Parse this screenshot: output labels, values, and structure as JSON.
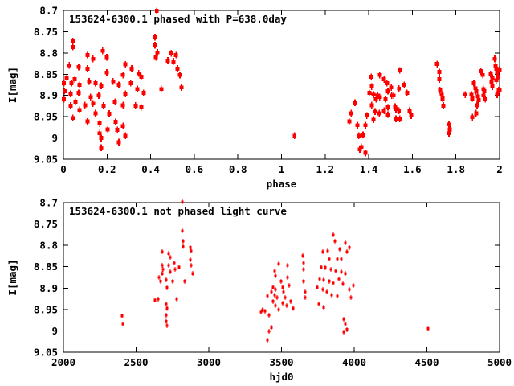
{
  "colors": {
    "marker": "#ff0000",
    "axis": "#000000",
    "background": "#ffffff"
  },
  "chart_data": [
    {
      "type": "scatter",
      "title": "153624-6300.1 phased with P=638.0day",
      "xlabel": "phase",
      "ylabel": "I[mag]",
      "xlim": [
        0,
        2
      ],
      "ylim": [
        8.7,
        9.05
      ],
      "y_axis_inverted": true,
      "grid": false,
      "legend": "none",
      "marker_style": "red filled square with vertical error bar",
      "xticks": {
        "values": [
          0,
          0.2,
          0.4,
          0.6,
          0.8,
          1,
          1.2,
          1.4,
          1.6,
          1.8,
          2
        ],
        "labels": [
          "0",
          "0.2",
          "0.4",
          "0.6",
          "0.8",
          "1",
          "1.2",
          "1.4",
          "1.6",
          "1.8",
          "2"
        ]
      },
      "yticks": {
        "values": [
          8.7,
          8.75,
          8.8,
          8.85,
          8.9,
          8.95,
          9,
          9.05
        ],
        "labels": [
          "8.7",
          "8.75",
          "8.8",
          "8.85",
          "8.9",
          "8.95",
          "9",
          "9.05"
        ]
      },
      "points": [
        [
          0.428,
          8.701
        ],
        [
          0.42,
          8.763
        ],
        [
          0.044,
          8.772
        ],
        [
          0.42,
          8.782
        ],
        [
          0.044,
          8.786
        ],
        [
          0.18,
          8.795
        ],
        [
          0.11,
          8.805
        ],
        [
          0.199,
          8.81
        ],
        [
          0.136,
          8.814
        ],
        [
          0.431,
          8.799
        ],
        [
          0.424,
          8.81
        ],
        [
          0.494,
          8.801
        ],
        [
          0.516,
          8.805
        ],
        [
          0.479,
          8.818
        ],
        [
          0.505,
          8.82
        ],
        [
          0.026,
          8.829
        ],
        [
          0.07,
          8.833
        ],
        [
          0.11,
          8.837
        ],
        [
          0.284,
          8.827
        ],
        [
          0.313,
          8.837
        ],
        [
          0.199,
          8.846
        ],
        [
          0.273,
          8.852
        ],
        [
          0.346,
          8.848
        ],
        [
          0.015,
          8.858
        ],
        [
          0.052,
          8.862
        ],
        [
          0.523,
          8.837
        ],
        [
          0.534,
          8.852
        ],
        [
          0.357,
          8.856
        ],
        [
          0.002,
          8.871
        ],
        [
          0.037,
          8.871
        ],
        [
          0.074,
          8.875
        ],
        [
          0.118,
          8.867
        ],
        [
          0.147,
          8.871
        ],
        [
          0.173,
          8.877
        ],
        [
          0.228,
          8.867
        ],
        [
          0.254,
          8.875
        ],
        [
          0.309,
          8.871
        ],
        [
          0.339,
          8.885
        ],
        [
          0.449,
          8.885
        ],
        [
          0.541,
          8.881
        ],
        [
          0.005,
          8.89
        ],
        [
          0.033,
          8.896
        ],
        [
          0.07,
          8.894
        ],
        [
          0.125,
          8.904
        ],
        [
          0.162,
          8.9
        ],
        [
          0.284,
          8.896
        ],
        [
          0.368,
          8.894
        ],
        [
          0.002,
          8.909
        ],
        [
          0.055,
          8.915
        ],
        [
          0.099,
          8.923
        ],
        [
          0.136,
          8.919
        ],
        [
          0.184,
          8.924
        ],
        [
          0.236,
          8.915
        ],
        [
          0.273,
          8.923
        ],
        [
          0.331,
          8.924
        ],
        [
          0.357,
          8.928
        ],
        [
          0.033,
          8.924
        ],
        [
          0.074,
          8.934
        ],
        [
          0.147,
          8.942
        ],
        [
          0.21,
          8.943
        ],
        [
          0.044,
          8.953
        ],
        [
          0.11,
          8.961
        ],
        [
          0.166,
          8.966
        ],
        [
          0.239,
          8.962
        ],
        [
          0.273,
          8.972
        ],
        [
          0.203,
          8.98
        ],
        [
          0.247,
          8.981
        ],
        [
          0.166,
          8.989
        ],
        [
          0.284,
          8.995
        ],
        [
          0.173,
          9.0
        ],
        [
          0.254,
          9.01
        ],
        [
          0.173,
          9.023
        ],
        [
          1.06,
          8.995
        ],
        [
          1.337,
          8.917
        ],
        [
          1.319,
          8.942
        ],
        [
          1.311,
          8.961
        ],
        [
          1.348,
          8.97
        ],
        [
          1.374,
          8.993
        ],
        [
          1.355,
          8.995
        ],
        [
          1.366,
          9.021
        ],
        [
          1.359,
          9.027
        ],
        [
          1.385,
          9.035
        ],
        [
          1.392,
          8.947
        ],
        [
          1.385,
          8.97
        ],
        [
          1.411,
          8.856
        ],
        [
          1.414,
          8.879
        ],
        [
          1.403,
          8.894
        ],
        [
          1.422,
          8.898
        ],
        [
          1.44,
          8.9
        ],
        [
          1.451,
          8.904
        ],
        [
          1.433,
          8.909
        ],
        [
          1.414,
          8.923
        ],
        [
          1.429,
          8.938
        ],
        [
          1.448,
          8.942
        ],
        [
          1.422,
          8.957
        ],
        [
          1.451,
          8.852
        ],
        [
          1.47,
          8.862
        ],
        [
          1.484,
          8.871
        ],
        [
          1.503,
          8.881
        ],
        [
          1.488,
          8.89
        ],
        [
          1.506,
          8.9
        ],
        [
          1.477,
          8.909
        ],
        [
          1.47,
          8.936
        ],
        [
          1.488,
          8.945
        ],
        [
          1.521,
          8.926
        ],
        [
          1.525,
          8.955
        ],
        [
          1.539,
          8.936
        ],
        [
          1.543,
          8.841
        ],
        [
          1.539,
          8.884
        ],
        [
          1.514,
          8.9
        ],
        [
          1.488,
          8.928
        ],
        [
          1.525,
          8.932
        ],
        [
          1.543,
          8.955
        ],
        [
          1.562,
          8.875
        ],
        [
          1.576,
          8.894
        ],
        [
          1.587,
          8.936
        ],
        [
          1.595,
          8.947
        ],
        [
          1.713,
          8.826
        ],
        [
          1.724,
          8.845
        ],
        [
          1.724,
          8.862
        ],
        [
          1.727,
          8.888
        ],
        [
          1.735,
          8.898
        ],
        [
          1.738,
          8.907
        ],
        [
          1.742,
          8.924
        ],
        [
          1.768,
          8.968
        ],
        [
          1.772,
          8.98
        ],
        [
          1.768,
          8.989
        ],
        [
          1.842,
          8.898
        ],
        [
          1.871,
          8.898
        ],
        [
          1.875,
          8.907
        ],
        [
          1.882,
          8.871
        ],
        [
          1.889,
          8.883
        ],
        [
          1.893,
          8.89
        ],
        [
          1.9,
          8.902
        ],
        [
          1.904,
          8.911
        ],
        [
          1.897,
          8.923
        ],
        [
          1.893,
          8.942
        ],
        [
          1.875,
          8.951
        ],
        [
          1.915,
          8.843
        ],
        [
          1.923,
          8.852
        ],
        [
          1.926,
          8.885
        ],
        [
          1.93,
          8.89
        ],
        [
          1.926,
          8.9
        ],
        [
          1.934,
          8.909
        ],
        [
          1.959,
          8.85
        ],
        [
          1.967,
          8.858
        ],
        [
          1.963,
          8.869
        ],
        [
          1.967,
          8.879
        ],
        [
          1.978,
          8.814
        ],
        [
          1.982,
          8.831
        ],
        [
          1.985,
          8.837
        ],
        [
          1.989,
          8.846
        ],
        [
          1.993,
          8.856
        ],
        [
          1.985,
          8.864
        ],
        [
          1.996,
          8.888
        ],
        [
          1.989,
          8.898
        ],
        [
          2.0,
          8.839
        ],
        [
          2.0,
          8.888
        ]
      ]
    },
    {
      "type": "scatter",
      "title": "153624-6300.1 not phased light curve",
      "xlabel": "hjd0",
      "ylabel": "I[mag]",
      "xlim": [
        2000,
        5000
      ],
      "ylim": [
        8.7,
        9.05
      ],
      "y_axis_inverted": true,
      "grid": false,
      "legend": "none",
      "marker_style": "small red filled square with vertical error bar",
      "xticks": {
        "values": [
          2000,
          2500,
          3000,
          3500,
          4000,
          4500,
          5000
        ],
        "labels": [
          "2000",
          "2500",
          "3000",
          "3500",
          "4000",
          "4500",
          "5000"
        ]
      },
      "yticks": {
        "values": [
          8.7,
          8.75,
          8.8,
          8.85,
          8.9,
          8.95,
          9,
          9.05
        ],
        "labels": [
          "8.7",
          "8.75",
          "8.8",
          "8.85",
          "8.9",
          "8.95",
          "9",
          "9.05"
        ]
      },
      "points": [
        [
          2403,
          8.965
        ],
        [
          2409,
          8.984
        ],
        [
          2818,
          8.698
        ],
        [
          2680,
          8.815
        ],
        [
          2724,
          8.819
        ],
        [
          2735,
          8.828
        ],
        [
          2818,
          8.766
        ],
        [
          2823,
          8.79
        ],
        [
          2823,
          8.803
        ],
        [
          2873,
          8.805
        ],
        [
          2878,
          8.813
        ],
        [
          2680,
          8.847
        ],
        [
          2685,
          8.856
        ],
        [
          2680,
          8.866
        ],
        [
          2724,
          8.847
        ],
        [
          2735,
          8.862
        ],
        [
          2762,
          8.841
        ],
        [
          2768,
          8.856
        ],
        [
          2796,
          8.851
        ],
        [
          2873,
          8.834
        ],
        [
          2878,
          8.847
        ],
        [
          2890,
          8.866
        ],
        [
          2657,
          8.875
        ],
        [
          2668,
          8.884
        ],
        [
          2707,
          8.881
        ],
        [
          2751,
          8.884
        ],
        [
          2713,
          8.899
        ],
        [
          2630,
          8.928
        ],
        [
          2652,
          8.926
        ],
        [
          2707,
          8.937
        ],
        [
          2713,
          8.947
        ],
        [
          2779,
          8.926
        ],
        [
          2707,
          8.963
        ],
        [
          2707,
          8.978
        ],
        [
          2713,
          8.988
        ],
        [
          2834,
          8.884
        ],
        [
          3403,
          8.918
        ],
        [
          3387,
          8.954
        ],
        [
          3414,
          8.963
        ],
        [
          3431,
          8.992
        ],
        [
          3414,
          9.001
        ],
        [
          3403,
          9.022
        ],
        [
          3453,
          8.86
        ],
        [
          3459,
          8.871
        ],
        [
          3442,
          8.898
        ],
        [
          3459,
          8.903
        ],
        [
          3431,
          8.909
        ],
        [
          3453,
          8.916
        ],
        [
          3470,
          8.922
        ],
        [
          3442,
          8.931
        ],
        [
          3459,
          8.941
        ],
        [
          3481,
          8.95
        ],
        [
          3497,
          8.884
        ],
        [
          3508,
          8.898
        ],
        [
          3514,
          8.909
        ],
        [
          3525,
          8.922
        ],
        [
          3508,
          8.935
        ],
        [
          3536,
          8.941
        ],
        [
          3541,
          8.875
        ],
        [
          3552,
          8.894
        ],
        [
          3564,
          8.931
        ],
        [
          3580,
          8.947
        ],
        [
          3481,
          8.843
        ],
        [
          3541,
          8.847
        ],
        [
          3370,
          8.95
        ],
        [
          3359,
          8.956
        ],
        [
          3646,
          8.824
        ],
        [
          3652,
          8.841
        ],
        [
          3652,
          8.856
        ],
        [
          3652,
          8.884
        ],
        [
          3663,
          8.909
        ],
        [
          3663,
          8.922
        ],
        [
          3818,
          8.813
        ],
        [
          3856,
          8.775
        ],
        [
          3867,
          8.79
        ],
        [
          3939,
          8.794
        ],
        [
          3950,
          8.815
        ],
        [
          3901,
          8.809
        ],
        [
          3912,
          8.832
        ],
        [
          3884,
          8.832
        ],
        [
          3829,
          8.832
        ],
        [
          3785,
          8.815
        ],
        [
          3773,
          8.851
        ],
        [
          3801,
          8.852
        ],
        [
          3840,
          8.856
        ],
        [
          3873,
          8.86
        ],
        [
          3912,
          8.862
        ],
        [
          3939,
          8.866
        ],
        [
          3762,
          8.879
        ],
        [
          3790,
          8.881
        ],
        [
          3829,
          8.884
        ],
        [
          3856,
          8.888
        ],
        [
          3895,
          8.879
        ],
        [
          3923,
          8.89
        ],
        [
          3746,
          8.898
        ],
        [
          3785,
          8.903
        ],
        [
          3812,
          8.909
        ],
        [
          3845,
          8.916
        ],
        [
          3884,
          8.918
        ],
        [
          3757,
          8.937
        ],
        [
          3790,
          8.945
        ],
        [
          3967,
          8.903
        ],
        [
          3978,
          8.922
        ],
        [
          3994,
          8.894
        ],
        [
          3928,
          8.973
        ],
        [
          3939,
          8.984
        ],
        [
          3950,
          8.997
        ],
        [
          3928,
          9.003
        ],
        [
          3967,
          8.805
        ],
        [
          4508,
          8.995
        ]
      ]
    }
  ]
}
